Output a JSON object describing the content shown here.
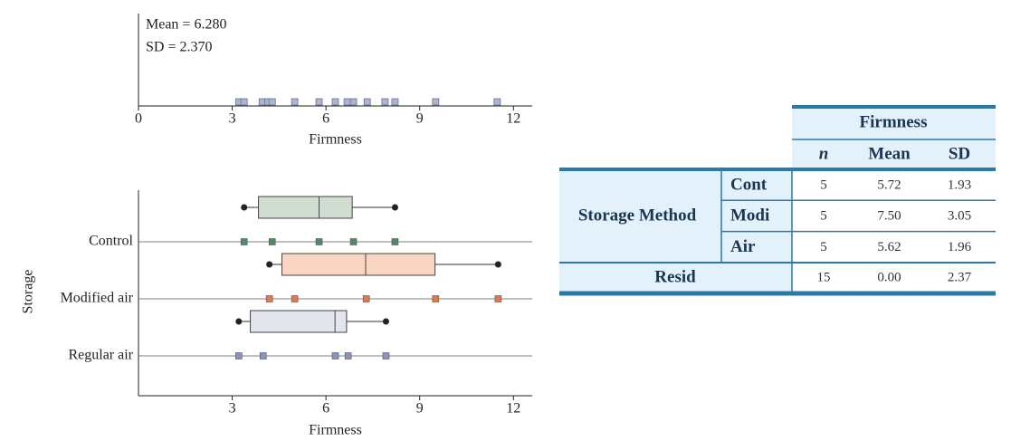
{
  "chart_data": [
    {
      "type": "dot",
      "annotations": [
        "Mean = 6.280",
        "SD = 2.370"
      ],
      "xlabel": "Firmness",
      "xlim": [
        0,
        12.6
      ],
      "xticks": [
        0,
        3,
        6,
        9,
        12
      ],
      "color": "#a9b5d2",
      "stroke": "#6a7590",
      "values": [
        3.21,
        3.38,
        3.96,
        4.14,
        4.28,
        5.0,
        5.78,
        6.3,
        6.68,
        6.88,
        7.32,
        7.89,
        8.21,
        9.51,
        11.48
      ]
    },
    {
      "type": "boxplot",
      "xlabel": "Firmness",
      "ylabel": "Storage",
      "xlim": [
        0,
        12.6
      ],
      "xticks": [
        3,
        6,
        9,
        12
      ],
      "series": [
        {
          "name": "Control",
          "color": "#4e8a68",
          "fill": "#cfddd2",
          "values": [
            3.38,
            4.28,
            5.78,
            6.88,
            8.21
          ],
          "min": 3.38,
          "q1": 3.84,
          "median": 5.78,
          "q3": 6.84,
          "max": 8.21
        },
        {
          "name": "Modified air",
          "color": "#e07a4a",
          "fill": "#f8d6c2",
          "values": [
            4.19,
            5.0,
            7.29,
            9.51,
            11.51
          ],
          "min": 4.19,
          "q1": 4.59,
          "median": 7.27,
          "q3": 9.49,
          "max": 11.51
        },
        {
          "name": "Regular air",
          "color": "#8a93bd",
          "fill": "#e3e6ed",
          "values": [
            3.21,
            3.99,
            6.3,
            6.71,
            7.92
          ],
          "min": 3.21,
          "q1": 3.58,
          "median": 6.29,
          "q3": 6.66,
          "max": 7.92
        }
      ]
    }
  ],
  "table": {
    "header": "Firmness",
    "columns": [
      "n",
      "Mean",
      "SD"
    ],
    "group": "Storage Method",
    "rows": [
      {
        "label": "Cont",
        "cells": [
          "5",
          "5.72",
          "1.93"
        ]
      },
      {
        "label": "Modi",
        "cells": [
          "5",
          "7.50",
          "3.05"
        ]
      },
      {
        "label": "Air",
        "cells": [
          "5",
          "5.62",
          "1.96"
        ]
      }
    ],
    "resid": {
      "label": "Resid",
      "cells": [
        "15",
        "0.00",
        "2.37"
      ]
    }
  }
}
